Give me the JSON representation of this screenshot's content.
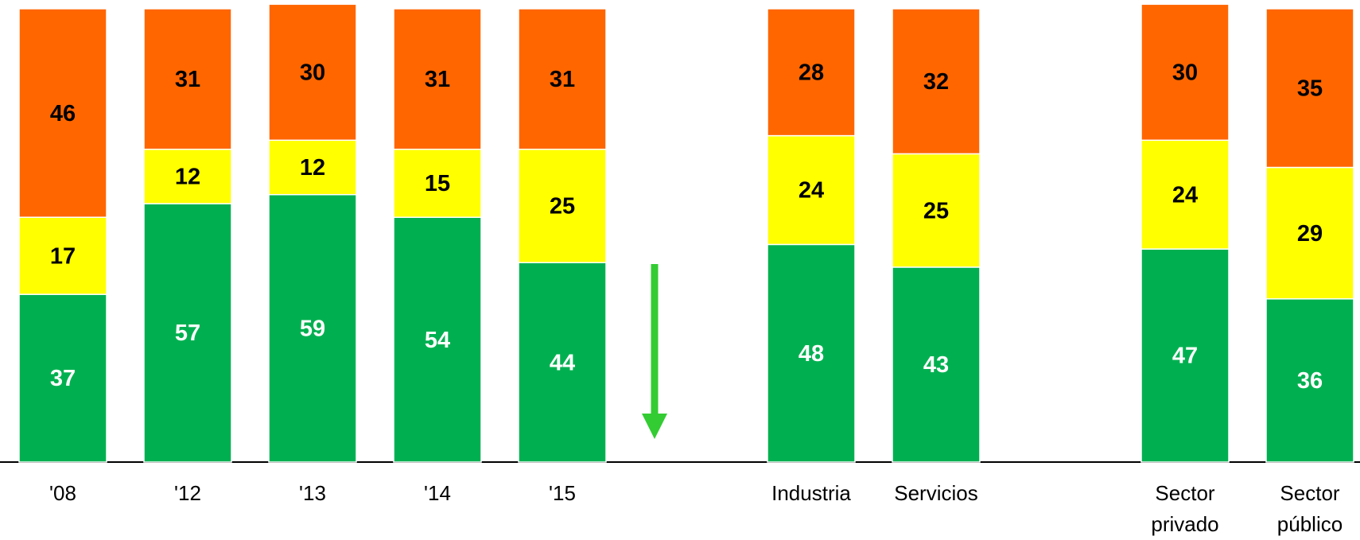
{
  "chart_data": {
    "type": "stacked_bar",
    "categories": [
      "'08",
      "'12",
      "'13",
      "'14",
      "'15",
      "Industria",
      "Servicios",
      "Sector privado",
      "Sector público"
    ],
    "series": [
      {
        "color": "#00b050",
        "label_color": "#ffffff",
        "values": [
          37,
          57,
          59,
          54,
          44,
          48,
          43,
          47,
          36
        ]
      },
      {
        "color": "#ffff00",
        "label_color": "#000000",
        "values": [
          17,
          12,
          12,
          15,
          25,
          24,
          25,
          24,
          29
        ]
      },
      {
        "color": "#ff6600",
        "label_color": "#000000",
        "values": [
          46,
          31,
          30,
          31,
          31,
          28,
          32,
          30,
          35
        ]
      }
    ],
    "ylim": [
      0,
      100
    ]
  }
}
